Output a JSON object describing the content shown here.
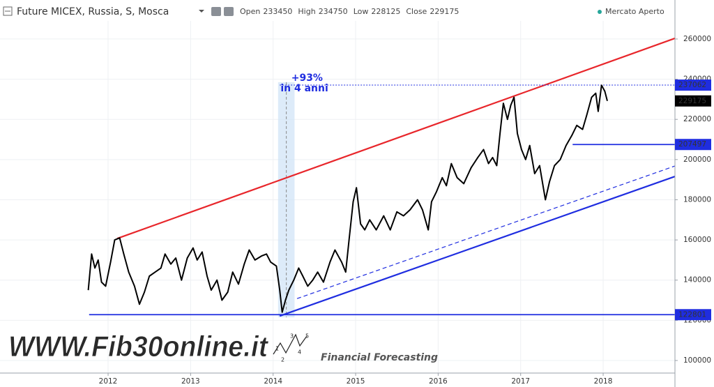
{
  "chart_data": {
    "type": "line",
    "title": "Future MICEX, Russia, S, Mosca",
    "ohlc": [
      {
        "label": "Open",
        "value": 233450
      },
      {
        "label": "High",
        "value": 234750
      },
      {
        "label": "Low",
        "value": 228125
      },
      {
        "label": "Close",
        "value": 229175
      }
    ],
    "status": "Mercato Aperto",
    "status_color": "#26a69a",
    "xlim": [
      2010.69,
      2018.87
    ],
    "xticks": [
      2012,
      2013,
      2014,
      2015,
      2016,
      2017,
      2018
    ],
    "ylim": [
      93750,
      269000
    ],
    "yticks": [
      100000,
      120000,
      140000,
      160000,
      180000,
      200000,
      220000,
      240000,
      260000
    ],
    "grid": true,
    "series": [
      {
        "color": "#000000",
        "x": [
          2011.76,
          2011.8,
          2011.84,
          2011.88,
          2011.92,
          2011.97,
          2012.03,
          2012.08,
          2012.14,
          2012.19,
          2012.25,
          2012.32,
          2012.38,
          2012.44,
          2012.5,
          2012.57,
          2012.64,
          2012.69,
          2012.76,
          2012.82,
          2012.89,
          2012.96,
          2013.03,
          2013.08,
          2013.14,
          2013.2,
          2013.25,
          2013.32,
          2013.38,
          2013.45,
          2013.51,
          2013.58,
          2013.65,
          2013.71,
          2013.78,
          2013.86,
          2013.92,
          2013.97,
          2014.04,
          2014.08,
          2014.11,
          2014.15,
          2014.19,
          2014.25,
          2014.31,
          2014.36,
          2014.42,
          2014.48,
          2014.54,
          2014.61,
          2014.69,
          2014.75,
          2014.83,
          2014.88,
          2014.92,
          2014.97,
          2015.01,
          2015.06,
          2015.11,
          2015.17,
          2015.25,
          2015.34,
          2015.42,
          2015.5,
          2015.58,
          2015.66,
          2015.75,
          2015.81,
          2015.88,
          2015.92,
          2015.98,
          2016.05,
          2016.1,
          2016.16,
          2016.23,
          2016.31,
          2016.4,
          2016.48,
          2016.55,
          2016.61,
          2016.66,
          2016.71,
          2016.75,
          2016.79,
          2016.84,
          2016.88,
          2016.92,
          2016.96,
          2017.01,
          2017.06,
          2017.11,
          2017.17,
          2017.23,
          2017.3,
          2017.35,
          2017.41,
          2017.48,
          2017.55,
          2017.62,
          2017.68,
          2017.75,
          2017.8,
          2017.86,
          2017.91,
          2017.94,
          2017.98,
          2018.02,
          2018.05
        ],
        "values": [
          135000,
          153000,
          146000,
          150000,
          139000,
          137000,
          149000,
          160000,
          161000,
          153000,
          144000,
          137000,
          128000,
          134000,
          142000,
          144000,
          146000,
          153000,
          148000,
          151000,
          140000,
          151000,
          156000,
          150000,
          154000,
          142000,
          135000,
          140000,
          130000,
          134000,
          144000,
          138000,
          148000,
          155000,
          150000,
          152000,
          153000,
          149000,
          147000,
          135000,
          124000,
          130000,
          135000,
          140000,
          146000,
          142000,
          137000,
          140000,
          144000,
          139000,
          149000,
          155000,
          149000,
          144000,
          160000,
          179000,
          186000,
          168000,
          165000,
          170000,
          165000,
          172000,
          165000,
          174000,
          172000,
          175000,
          180000,
          175000,
          165000,
          179000,
          184000,
          191000,
          187000,
          198000,
          191000,
          188000,
          196000,
          201000,
          205000,
          198000,
          201000,
          197000,
          213000,
          228000,
          220000,
          227000,
          231000,
          213000,
          205000,
          200000,
          207000,
          193000,
          197000,
          180000,
          189000,
          197000,
          200000,
          207000,
          212000,
          217000,
          215000,
          222000,
          231000,
          233000,
          224000,
          237000,
          234000,
          229175
        ]
      }
    ],
    "trendlines": [
      {
        "x": [
          2012.11,
          2018.87
        ],
        "y": [
          160700,
          260350
        ],
        "color": "#e8262b",
        "style": "solid"
      },
      {
        "x": [
          2014.08,
          2018.87
        ],
        "y": [
          122150,
          191600
        ],
        "color": "#1f2de0",
        "style": "solid"
      },
      {
        "x": [
          2014.29,
          2018.87
        ],
        "y": [
          130800,
          196800
        ],
        "color": "#1f2de0",
        "style": "dashed"
      }
    ],
    "levels": [
      {
        "value": 237062,
        "x_start": 2014.08,
        "color": "#1f2de0",
        "style": "dotted"
      },
      {
        "value": 207497,
        "x_start": 2017.63,
        "color": "#1f2de0",
        "style": "solid"
      },
      {
        "value": 122801,
        "x_start": 2011.77,
        "color": "#1f2de0",
        "style": "solid"
      }
    ],
    "last_color": "#000000",
    "highlight": {
      "x": [
        2014.06,
        2014.26
      ],
      "y": [
        121500,
        238500
      ],
      "color": "#cfe3f7"
    },
    "annotations": [
      {
        "text": "+93%",
        "x": 2014.22,
        "y": 240500
      },
      {
        "text": "in 4 anni",
        "x": 2014.09,
        "y": 235300
      }
    ]
  },
  "watermark": {
    "site": "WWW.Fib30online.it",
    "tagline": "Financial Forecasting",
    "waves": [
      "1",
      "2",
      "3",
      "4",
      "5"
    ]
  }
}
